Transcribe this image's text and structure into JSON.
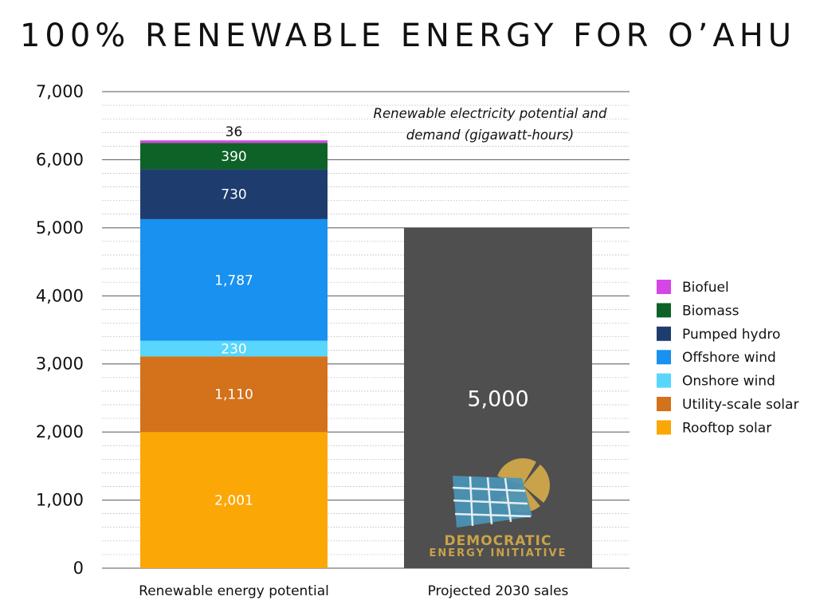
{
  "chart_data": {
    "type": "bar",
    "stacked": true,
    "title": "100% RENEWABLE ENERGY FOR O’AHU",
    "subtitle_lines": [
      "Renewable electricity potential and",
      "demand (gigawatt-hours)"
    ],
    "categories": [
      "Renewable energy potential",
      "Projected 2030 sales"
    ],
    "ylim": [
      0,
      7000
    ],
    "yticks": [
      {
        "value": 0,
        "label": "0"
      },
      {
        "value": 1000,
        "label": "1,000"
      },
      {
        "value": 2000,
        "label": "2,000"
      },
      {
        "value": 3000,
        "label": "3,000"
      },
      {
        "value": 4000,
        "label": "4,000"
      },
      {
        "value": 5000,
        "label": "5,000"
      },
      {
        "value": 6000,
        "label": "6,000"
      },
      {
        "value": 7000,
        "label": "7,000"
      }
    ],
    "grid": true,
    "legend_position": "right",
    "series": [
      {
        "name": "Rooftop solar",
        "color": "#fba705",
        "values": [
          2001,
          0
        ],
        "labels": [
          "2,001",
          ""
        ]
      },
      {
        "name": "Utility-scale solar",
        "color": "#d4711b",
        "values": [
          1110,
          0
        ],
        "labels": [
          "1,110",
          ""
        ]
      },
      {
        "name": "Onshore wind",
        "color": "#58d6fb",
        "values": [
          230,
          0
        ],
        "labels": [
          "230",
          ""
        ]
      },
      {
        "name": "Offshore wind",
        "color": "#1891f0",
        "values": [
          1787,
          0
        ],
        "labels": [
          "1,787",
          ""
        ]
      },
      {
        "name": "Pumped hydro",
        "color": "#1e3d6e",
        "values": [
          730,
          0
        ],
        "labels": [
          "730",
          ""
        ]
      },
      {
        "name": "Biomass",
        "color": "#0e6228",
        "values": [
          390,
          0
        ],
        "labels": [
          "390",
          ""
        ]
      },
      {
        "name": "Biofuel",
        "color": "#d546e6",
        "values": [
          36,
          0
        ],
        "labels": [
          "36",
          ""
        ]
      }
    ],
    "demand_bar": {
      "color": "#4f4f4f",
      "value": 5000,
      "label": "5,000"
    }
  },
  "logo": {
    "line1": "DEMOCRATIC",
    "line2": "ENERGY INITIATIVE",
    "colors": {
      "gold": "#c9a24a",
      "blue": "#4a95b7"
    }
  }
}
